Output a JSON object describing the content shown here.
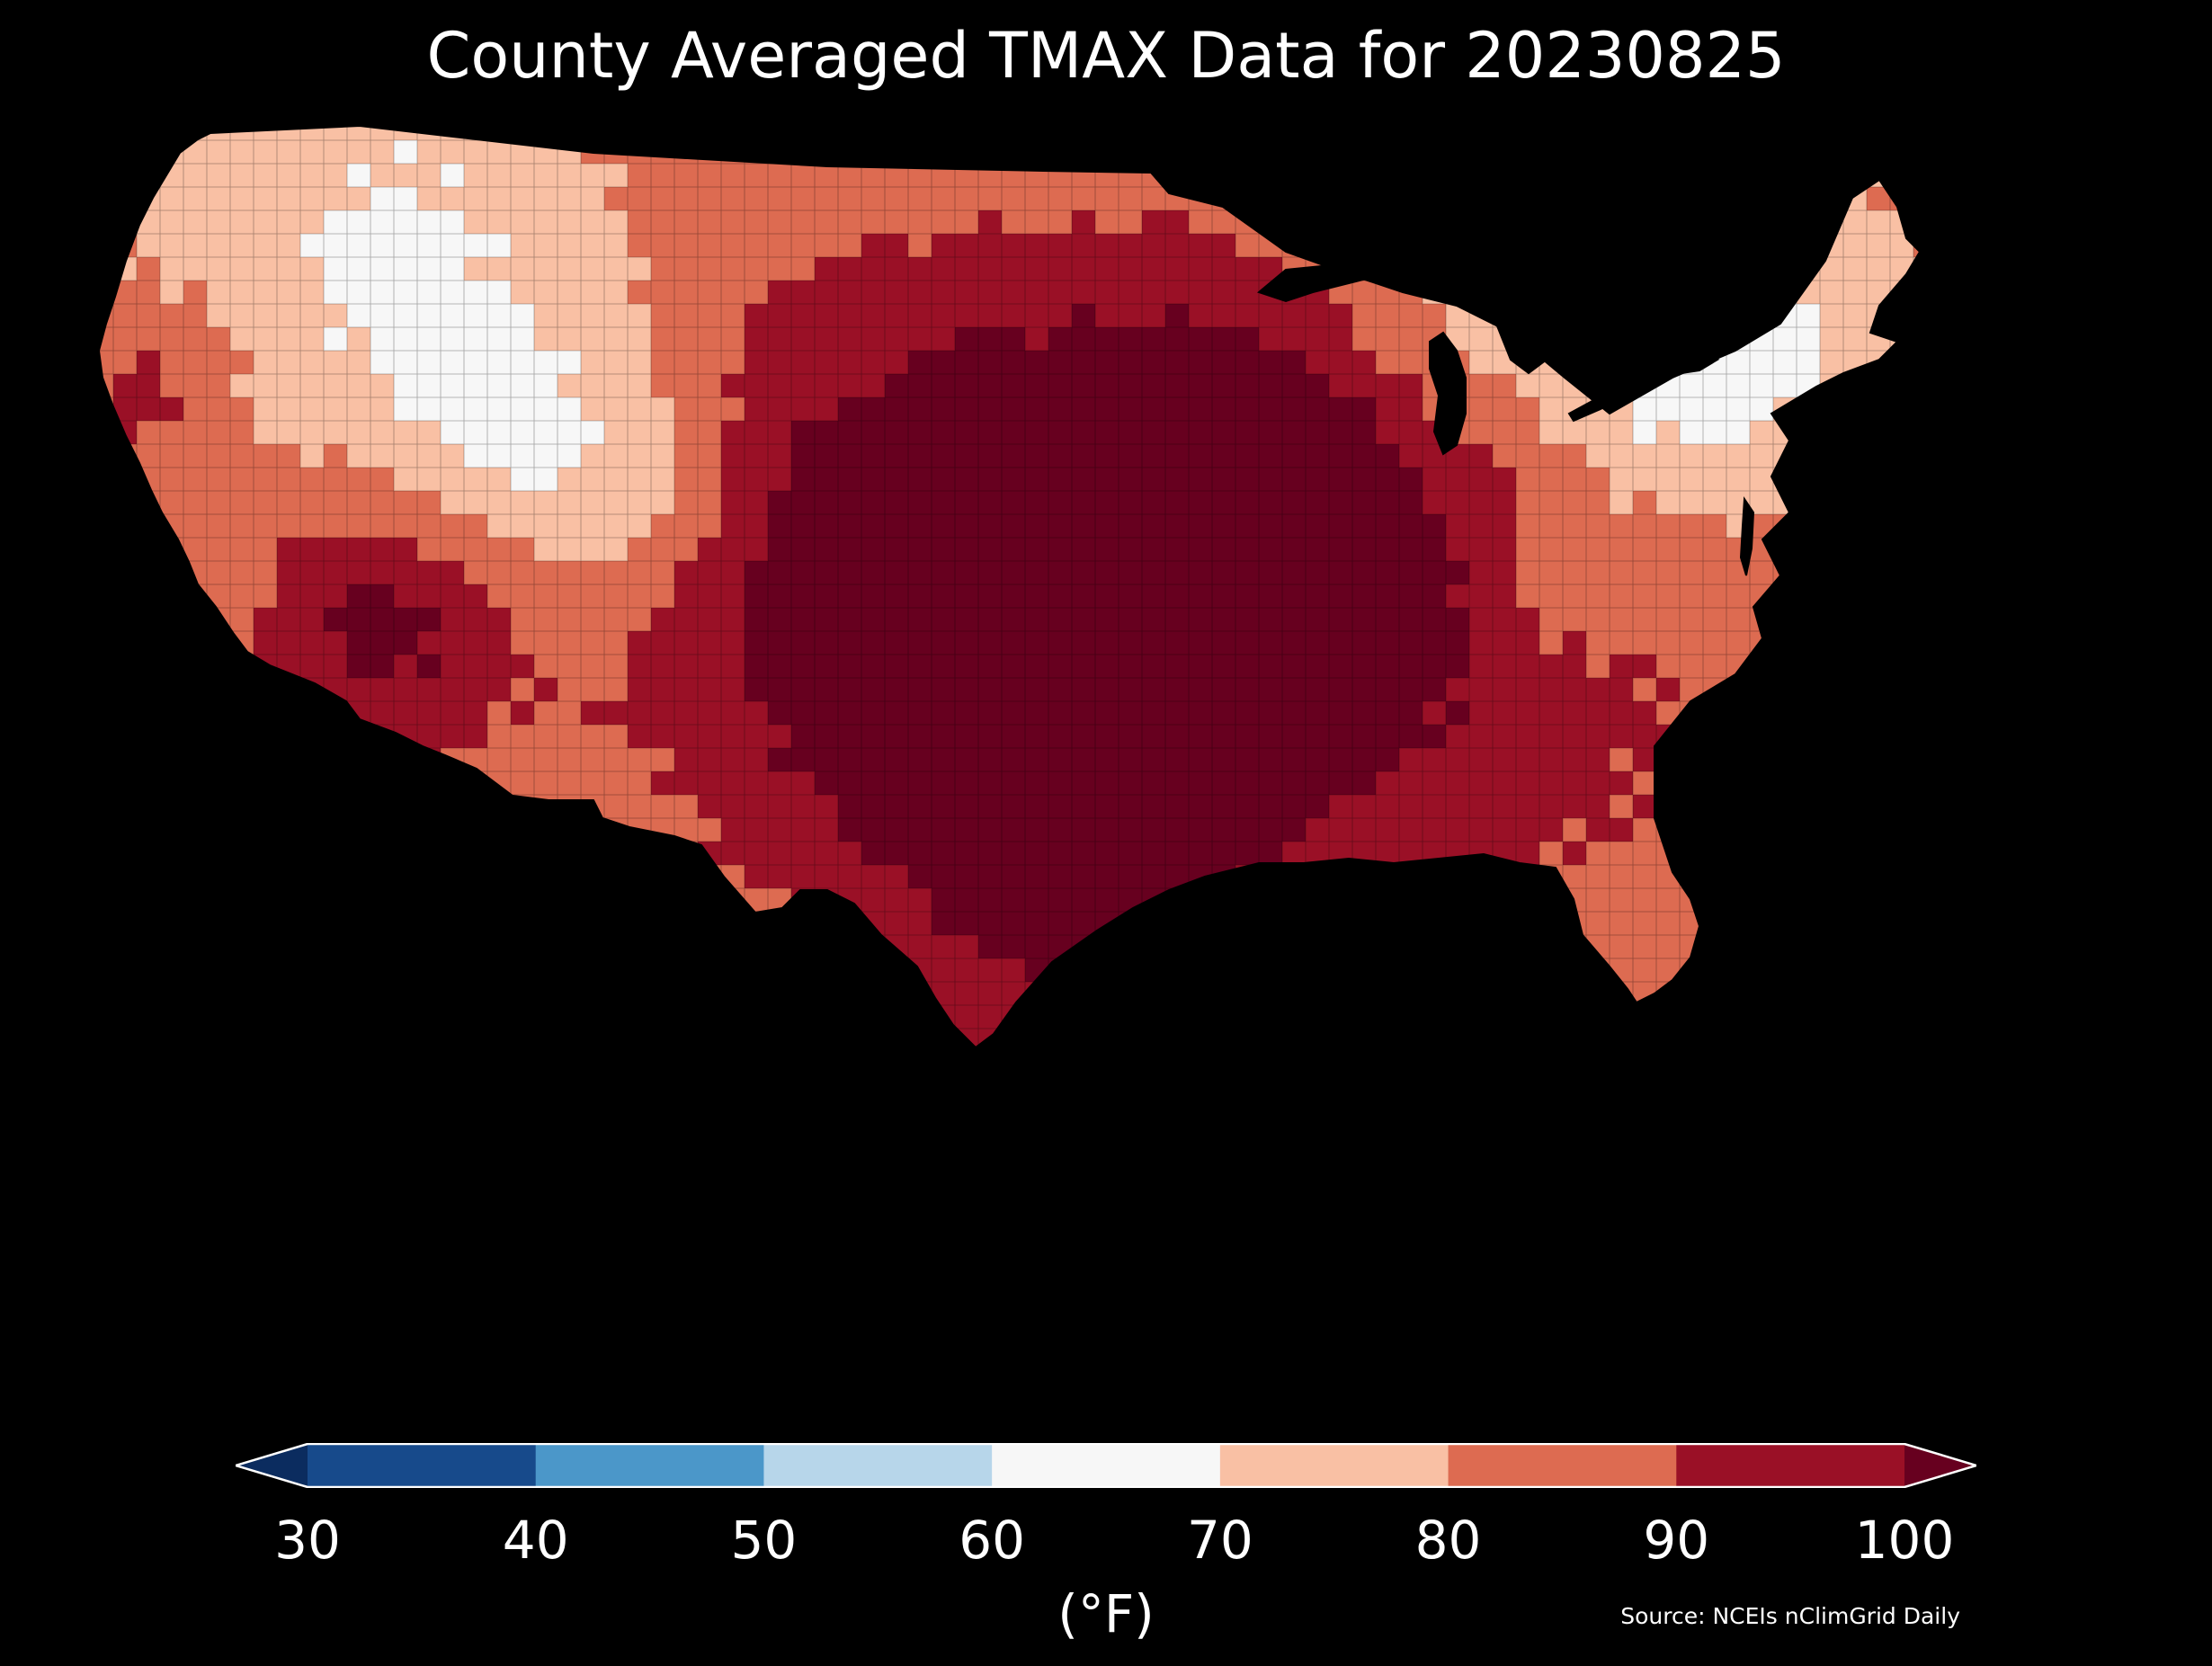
{
  "title": "County Averaged TMAX Data for 20230825",
  "map": {
    "region": "Contiguous United States",
    "fill_scale": "RdBu_r",
    "background": "#000000",
    "border_color": "#000000"
  },
  "colorbar": {
    "bins": [
      {
        "min": 30,
        "max": 40,
        "color": "#174a8b"
      },
      {
        "min": 40,
        "max": 50,
        "color": "#4b97c9"
      },
      {
        "min": 50,
        "max": 60,
        "color": "#b7d6ea"
      },
      {
        "min": 60,
        "max": 70,
        "color": "#f7f7f7"
      },
      {
        "min": 70,
        "max": 80,
        "color": "#f9c0a4"
      },
      {
        "min": 80,
        "max": 90,
        "color": "#dd6b51"
      },
      {
        "min": 90,
        "max": 100,
        "color": "#9a1026"
      }
    ],
    "under_color": "#0b2c5f",
    "over_color": "#67001f",
    "extend": "both",
    "tick_labels": [
      "30",
      "40",
      "50",
      "60",
      "70",
      "80",
      "90",
      "100"
    ],
    "unit_label": "(°F)"
  },
  "source": "Source: NCEIs nClimGrid Daily"
}
